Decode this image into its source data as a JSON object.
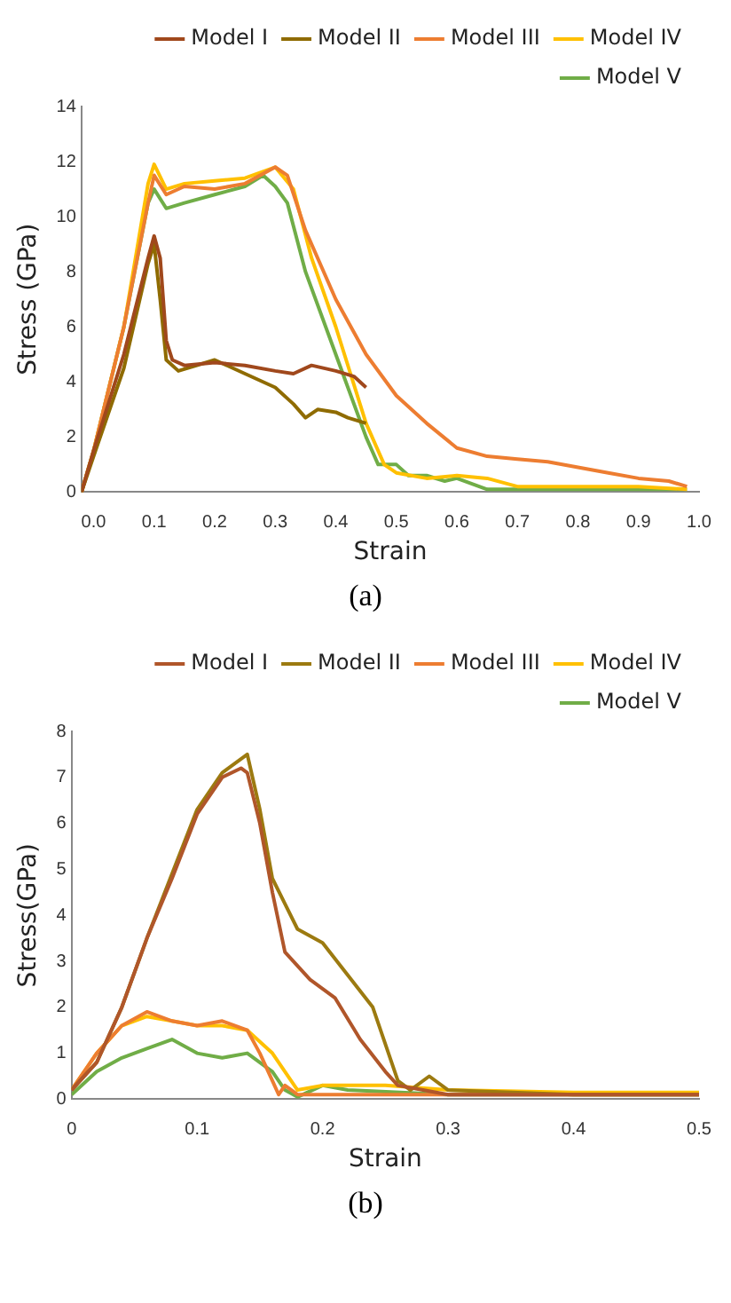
{
  "chart_data": [
    {
      "type": "line",
      "xlabel": "Strain",
      "ylabel": "Stress (GPa)",
      "annotations": [
        "(a)"
      ],
      "xlim": [
        -0.02,
        1.0
      ],
      "xticks": [
        {
          "value": 0,
          "label": "0.0"
        },
        0.1,
        0.2,
        0.3,
        0.4,
        0.5,
        0.6,
        0.7,
        0.8,
        0.9,
        {
          "value": 1,
          "label": "1.0"
        }
      ],
      "ylim": [
        0,
        14
      ],
      "yticks": [
        0,
        2,
        4,
        6,
        8,
        10,
        12,
        14
      ],
      "grid": false,
      "legend": "top right",
      "marker": "none",
      "series": [
        {
          "name": "Model I",
          "color": "#a0481c",
          "x": [
            -0.02,
            0,
            0.05,
            0.09,
            0.1,
            0.11,
            0.12,
            0.13,
            0.15,
            0.2,
            0.25,
            0.3,
            0.33,
            0.36,
            0.4,
            0.43,
            0.45
          ],
          "values": [
            0,
            1.5,
            5,
            8.5,
            9.3,
            8.5,
            5.5,
            4.8,
            4.6,
            4.7,
            4.6,
            4.4,
            4.3,
            4.6,
            4.4,
            4.2,
            3.8
          ]
        },
        {
          "name": "Model II",
          "color": "#8f6b00",
          "x": [
            -0.02,
            0,
            0.05,
            0.09,
            0.1,
            0.11,
            0.12,
            0.14,
            0.2,
            0.25,
            0.3,
            0.33,
            0.35,
            0.37,
            0.4,
            0.42,
            0.45
          ],
          "values": [
            0,
            1.3,
            4.5,
            8.3,
            9.0,
            7,
            4.8,
            4.4,
            4.8,
            4.3,
            3.8,
            3.2,
            2.7,
            3.0,
            2.9,
            2.7,
            2.5
          ]
        },
        {
          "name": "Model III",
          "color": "#ed7d31",
          "x": [
            -0.02,
            0,
            0.05,
            0.09,
            0.1,
            0.12,
            0.15,
            0.2,
            0.25,
            0.3,
            0.32,
            0.35,
            0.4,
            0.45,
            0.5,
            0.55,
            0.6,
            0.65,
            0.7,
            0.75,
            0.8,
            0.85,
            0.9,
            0.95,
            0.98
          ],
          "values": [
            0,
            1.5,
            6,
            10.5,
            11.5,
            10.8,
            11.1,
            11.0,
            11.2,
            11.8,
            11.5,
            9.5,
            7,
            5,
            3.5,
            2.5,
            1.6,
            1.3,
            1.2,
            1.1,
            0.9,
            0.7,
            0.5,
            0.4,
            0.2
          ]
        },
        {
          "name": "Model IV",
          "color": "#ffc000",
          "x": [
            -0.02,
            0,
            0.05,
            0.09,
            0.1,
            0.12,
            0.15,
            0.2,
            0.25,
            0.3,
            0.33,
            0.36,
            0.4,
            0.45,
            0.48,
            0.5,
            0.55,
            0.6,
            0.65,
            0.7,
            0.8,
            0.9,
            0.98
          ],
          "values": [
            0,
            1.5,
            6,
            11.2,
            11.9,
            11,
            11.2,
            11.3,
            11.4,
            11.8,
            11,
            8.5,
            6,
            2.5,
            1,
            0.7,
            0.5,
            0.6,
            0.5,
            0.2,
            0.2,
            0.2,
            0.1
          ]
        },
        {
          "name": "Model V",
          "color": "#70ad47",
          "x": [
            -0.02,
            0,
            0.05,
            0.09,
            0.1,
            0.12,
            0.15,
            0.2,
            0.25,
            0.28,
            0.3,
            0.32,
            0.35,
            0.4,
            0.45,
            0.47,
            0.5,
            0.52,
            0.55,
            0.58,
            0.6,
            0.65,
            0.7,
            0.8,
            0.9,
            0.98
          ],
          "values": [
            0,
            1.5,
            6,
            10.5,
            11,
            10.3,
            10.5,
            10.8,
            11.1,
            11.5,
            11.1,
            10.5,
            8,
            5,
            2,
            1.0,
            1.0,
            0.6,
            0.6,
            0.4,
            0.5,
            0.1,
            0.1,
            0.1,
            0.1,
            0.1
          ]
        }
      ]
    },
    {
      "type": "line",
      "xlabel": "Strain",
      "ylabel": "Stress(GPa)",
      "annotations": [
        "(b)"
      ],
      "xlim": [
        0,
        0.5
      ],
      "xticks": [
        0,
        0.1,
        0.2,
        0.3,
        0.4,
        0.5
      ],
      "ylim": [
        0,
        8
      ],
      "yticks": [
        0,
        1,
        2,
        3,
        4,
        5,
        6,
        7,
        8
      ],
      "grid": false,
      "legend": "top right",
      "marker": "none",
      "series": [
        {
          "name": "Model I",
          "color": "#b0562a",
          "x": [
            0,
            0.02,
            0.04,
            0.06,
            0.08,
            0.1,
            0.12,
            0.135,
            0.14,
            0.15,
            0.16,
            0.17,
            0.19,
            0.21,
            0.23,
            0.25,
            0.26,
            0.28,
            0.3,
            0.4,
            0.5
          ],
          "values": [
            0.2,
            0.8,
            2,
            3.5,
            4.8,
            6.2,
            7,
            7.2,
            7.1,
            6,
            4.5,
            3.2,
            2.6,
            2.2,
            1.3,
            0.6,
            0.3,
            0.2,
            0.1,
            0.1,
            0.1
          ]
        },
        {
          "name": "Model II",
          "color": "#9c7a10",
          "x": [
            0,
            0.02,
            0.04,
            0.06,
            0.08,
            0.1,
            0.12,
            0.14,
            0.15,
            0.16,
            0.18,
            0.2,
            0.22,
            0.24,
            0.26,
            0.27,
            0.285,
            0.3,
            0.4,
            0.5
          ],
          "values": [
            0.2,
            0.8,
            2,
            3.5,
            4.9,
            6.3,
            7.1,
            7.5,
            6.3,
            4.8,
            3.7,
            3.4,
            2.7,
            2,
            0.4,
            0.2,
            0.5,
            0.2,
            0.1,
            0.1
          ]
        },
        {
          "name": "Model III",
          "color": "#ed7d31",
          "x": [
            0,
            0.02,
            0.04,
            0.06,
            0.08,
            0.1,
            0.12,
            0.14,
            0.15,
            0.16,
            0.165,
            0.17,
            0.18,
            0.2,
            0.3,
            0.4,
            0.5
          ],
          "values": [
            0.2,
            1,
            1.6,
            1.9,
            1.7,
            1.6,
            1.7,
            1.5,
            1.0,
            0.4,
            0.1,
            0.3,
            0.1,
            0.1,
            0.1,
            0.1,
            0.1
          ]
        },
        {
          "name": "Model IV",
          "color": "#ffc000",
          "x": [
            0,
            0.02,
            0.04,
            0.06,
            0.08,
            0.1,
            0.12,
            0.14,
            0.16,
            0.18,
            0.2,
            0.25,
            0.3,
            0.4,
            0.5
          ],
          "values": [
            0.2,
            1,
            1.6,
            1.8,
            1.7,
            1.6,
            1.6,
            1.5,
            1.0,
            0.2,
            0.3,
            0.3,
            0.2,
            0.15,
            0.15
          ]
        },
        {
          "name": "Model V",
          "color": "#70ad47",
          "x": [
            0,
            0.02,
            0.04,
            0.06,
            0.08,
            0.1,
            0.12,
            0.14,
            0.16,
            0.17,
            0.18,
            0.2,
            0.22,
            0.3,
            0.4,
            0.5
          ],
          "values": [
            0.1,
            0.6,
            0.9,
            1.1,
            1.3,
            1.0,
            0.9,
            1.0,
            0.6,
            0.2,
            0.05,
            0.3,
            0.2,
            0.1,
            0.1,
            0.1
          ]
        }
      ]
    }
  ]
}
